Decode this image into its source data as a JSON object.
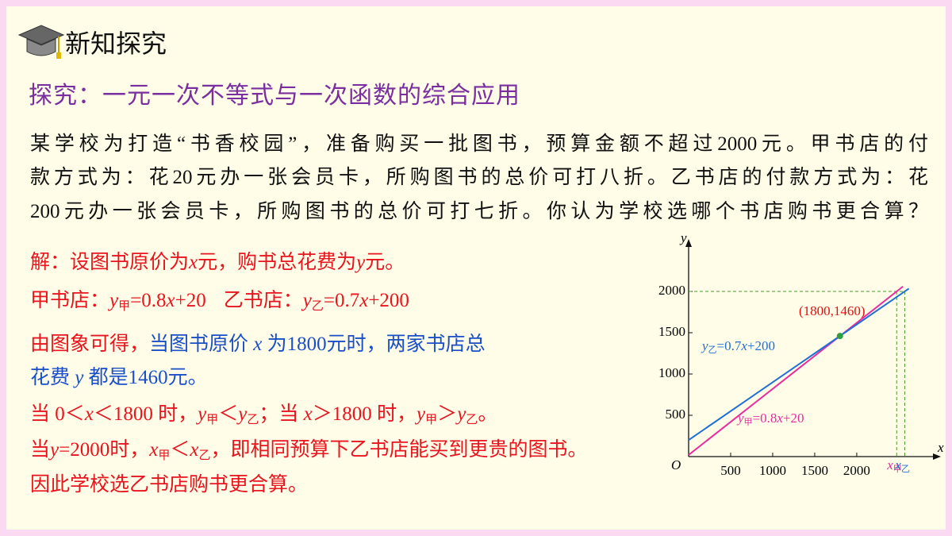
{
  "header": {
    "title": "新知探究"
  },
  "heading": "探究：一元一次不等式与一次函数的综合应用",
  "problem": {
    "lines": [
      "某学校为打造“书香校园”，准备购买一批图书，预算金额不超过2000元。甲书店的付",
      "款方式为：花20元办一张会员卡，所购图书的总价可打八折。乙书店的付款方式为：花",
      "200元办一张会员卡，所购图书的总价可打七折。你认为学校选哪个书店购书更合算？"
    ]
  },
  "solution": {
    "lines": [
      [
        "解：设图书原价为",
        "x",
        "元，购书总花费为",
        "y",
        "元。"
      ],
      [
        "甲书店：",
        "y",
        "甲",
        "=0.8",
        "x",
        "+20",
        "乙书店：",
        "y",
        "乙",
        "=0.7",
        "x",
        "+200"
      ],
      [
        "由图象可得，",
        "当图书原价 ",
        "x",
        " 为1800元时，两家书店总"
      ],
      [
        "花费 ",
        "y",
        " 都是1460元。"
      ],
      [
        "当 0＜",
        "x",
        "＜1800 时，",
        "y",
        "甲",
        "＜",
        "y",
        "乙",
        "；当 ",
        "x",
        "＞1800 时，",
        "y",
        "甲",
        "＞",
        "y",
        "乙",
        "。"
      ],
      [
        "当",
        "y",
        "=2000时，",
        "x",
        "甲",
        "＜",
        "x",
        "乙",
        "，即相同预算下乙书店能买到更贵的图书。"
      ],
      [
        "因此学校选乙书店购书更合算。"
      ]
    ]
  },
  "chart_data": {
    "type": "line",
    "x_label": "x",
    "y_label": "y",
    "origin_label": "O",
    "xlim": [
      0,
      2850
    ],
    "ylim": [
      0,
      2500
    ],
    "xticks": [
      500,
      1000,
      1500,
      2000
    ],
    "yticks": [
      500,
      1000,
      1500,
      2000
    ],
    "series": [
      {
        "name": [
          "y",
          "甲",
          "=0.8",
          "x",
          "+20"
        ],
        "color": "#e62e9e",
        "x": [
          0,
          2550
        ],
        "values": [
          20,
          2060
        ]
      },
      {
        "name": [
          "y",
          "乙",
          "=0.7",
          "x",
          "+200"
        ],
        "color": "#1f6fd6",
        "x": [
          0,
          2620
        ],
        "values": [
          200,
          2034
        ]
      }
    ],
    "point": {
      "x": 1800,
      "y": 1460,
      "label": "(1800,1460)",
      "color": "#2e9e3e",
      "label_color": "#e01010"
    },
    "guides": {
      "y": 2000,
      "color": "#4a9a2a",
      "x": [
        2475,
        2571
      ],
      "labels": [
        [
          "x",
          "甲"
        ],
        [
          "x",
          "乙"
        ]
      ]
    }
  }
}
